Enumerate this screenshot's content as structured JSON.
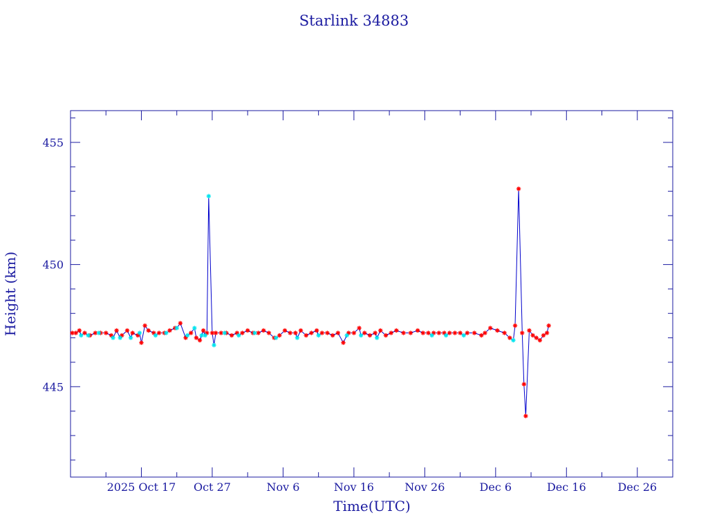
{
  "chart_data": {
    "type": "line",
    "title": "Starlink 34883",
    "xlabel": "Time(UTC)",
    "ylabel": "Height (km)",
    "xlim": [
      "2025-10-07",
      "2025-12-31"
    ],
    "ylim": [
      441.3,
      456.3
    ],
    "x_ticks": [
      {
        "date": "2025-10-17",
        "label": "2025 Oct 17"
      },
      {
        "date": "2025-10-27",
        "label": "Oct 27"
      },
      {
        "date": "2025-11-06",
        "label": "Nov  6"
      },
      {
        "date": "2025-11-16",
        "label": "Nov 16"
      },
      {
        "date": "2025-11-26",
        "label": "Nov 26"
      },
      {
        "date": "2025-12-06",
        "label": "Dec  6"
      },
      {
        "date": "2025-12-16",
        "label": "Dec 16"
      },
      {
        "date": "2025-12-26",
        "label": "Dec 26"
      }
    ],
    "y_ticks": [
      445,
      450,
      455
    ],
    "grid": false,
    "colors": {
      "axis": "#1a1aa0",
      "line": "#0000cc",
      "marker_a": "#ff0000",
      "marker_b": "#00e5ee"
    },
    "series": [
      {
        "marker": "red-asterisk",
        "points": [
          [
            "2025-10-07 06:00",
            447.2
          ],
          [
            "2025-10-07 18:00",
            447.2
          ],
          [
            "2025-10-08 06:00",
            447.3
          ],
          [
            "2025-10-09 00:00",
            447.2
          ],
          [
            "2025-10-09 18:00",
            447.1
          ],
          [
            "2025-10-10 12:00",
            447.2
          ],
          [
            "2025-10-11 06:00",
            447.2
          ],
          [
            "2025-10-12 00:00",
            447.2
          ],
          [
            "2025-10-12 18:00",
            447.1
          ],
          [
            "2025-10-13 12:00",
            447.3
          ],
          [
            "2025-10-14 06:00",
            447.1
          ],
          [
            "2025-10-15 00:00",
            447.3
          ],
          [
            "2025-10-15 18:00",
            447.2
          ],
          [
            "2025-10-16 12:00",
            447.1
          ],
          [
            "2025-10-17 00:00",
            446.8
          ],
          [
            "2025-10-17 12:00",
            447.5
          ],
          [
            "2025-10-18 00:00",
            447.3
          ],
          [
            "2025-10-18 18:00",
            447.2
          ],
          [
            "2025-10-19 12:00",
            447.2
          ],
          [
            "2025-10-20 06:00",
            447.2
          ],
          [
            "2025-10-21 00:00",
            447.3
          ],
          [
            "2025-10-21 18:00",
            447.4
          ],
          [
            "2025-10-22 12:00",
            447.6
          ],
          [
            "2025-10-23 06:00",
            447.0
          ],
          [
            "2025-10-24 00:00",
            447.2
          ],
          [
            "2025-10-24 18:00",
            447.0
          ],
          [
            "2025-10-25 06:00",
            446.9
          ],
          [
            "2025-10-25 18:00",
            447.3
          ],
          [
            "2025-10-26 06:00",
            447.2
          ],
          [
            "2025-10-27 00:00",
            447.2
          ],
          [
            "2025-10-27 12:00",
            447.2
          ],
          [
            "2025-10-28 06:00",
            447.2
          ],
          [
            "2025-10-29 00:00",
            447.2
          ],
          [
            "2025-10-29 18:00",
            447.1
          ],
          [
            "2025-10-30 12:00",
            447.2
          ],
          [
            "2025-10-31 06:00",
            447.2
          ],
          [
            "2025-11-01 00:00",
            447.3
          ],
          [
            "2025-11-01 18:00",
            447.2
          ],
          [
            "2025-11-02 12:00",
            447.2
          ],
          [
            "2025-11-03 06:00",
            447.3
          ],
          [
            "2025-11-04 00:00",
            447.2
          ],
          [
            "2025-11-04 18:00",
            447.0
          ],
          [
            "2025-11-05 12:00",
            447.1
          ],
          [
            "2025-11-06 06:00",
            447.3
          ],
          [
            "2025-11-07 00:00",
            447.2
          ],
          [
            "2025-11-07 18:00",
            447.2
          ],
          [
            "2025-11-08 12:00",
            447.3
          ],
          [
            "2025-11-09 06:00",
            447.1
          ],
          [
            "2025-11-10 00:00",
            447.2
          ],
          [
            "2025-11-10 18:00",
            447.3
          ],
          [
            "2025-11-11 12:00",
            447.2
          ],
          [
            "2025-11-12 06:00",
            447.2
          ],
          [
            "2025-11-13 00:00",
            447.1
          ],
          [
            "2025-11-13 18:00",
            447.2
          ],
          [
            "2025-11-14 12:00",
            446.8
          ],
          [
            "2025-11-15 06:00",
            447.2
          ],
          [
            "2025-11-16 00:00",
            447.2
          ],
          [
            "2025-11-16 18:00",
            447.4
          ],
          [
            "2025-11-17 12:00",
            447.2
          ],
          [
            "2025-11-18 06:00",
            447.1
          ],
          [
            "2025-11-19 00:00",
            447.2
          ],
          [
            "2025-11-19 18:00",
            447.3
          ],
          [
            "2025-11-20 12:00",
            447.1
          ],
          [
            "2025-11-21 06:00",
            447.2
          ],
          [
            "2025-11-22 00:00",
            447.3
          ],
          [
            "2025-11-23 00:00",
            447.2
          ],
          [
            "2025-11-24 00:00",
            447.2
          ],
          [
            "2025-11-25 00:00",
            447.3
          ],
          [
            "2025-11-25 18:00",
            447.2
          ],
          [
            "2025-11-26 12:00",
            447.2
          ],
          [
            "2025-11-27 06:00",
            447.2
          ],
          [
            "2025-11-28 00:00",
            447.2
          ],
          [
            "2025-11-28 18:00",
            447.2
          ],
          [
            "2025-11-29 12:00",
            447.2
          ],
          [
            "2025-11-30 06:00",
            447.2
          ],
          [
            "2025-12-01 00:00",
            447.2
          ],
          [
            "2025-12-02 00:00",
            447.2
          ],
          [
            "2025-12-03 00:00",
            447.2
          ],
          [
            "2025-12-04 00:00",
            447.1
          ],
          [
            "2025-12-04 12:00",
            447.2
          ],
          [
            "2025-12-05 06:00",
            447.4
          ],
          [
            "2025-12-06 06:00",
            447.3
          ],
          [
            "2025-12-07 06:00",
            447.2
          ],
          [
            "2025-12-08 00:00",
            447.0
          ],
          [
            "2025-12-08 18:00",
            447.5
          ],
          [
            "2025-12-09 06:00",
            453.1
          ],
          [
            "2025-12-09 18:00",
            447.2
          ],
          [
            "2025-12-10 00:00",
            445.1
          ],
          [
            "2025-12-10 06:00",
            443.8
          ],
          [
            "2025-12-10 18:00",
            447.3
          ],
          [
            "2025-12-11 06:00",
            447.1
          ],
          [
            "2025-12-11 18:00",
            447.0
          ],
          [
            "2025-12-12 06:00",
            446.9
          ],
          [
            "2025-12-12 18:00",
            447.1
          ],
          [
            "2025-12-13 06:00",
            447.2
          ],
          [
            "2025-12-13 12:00",
            447.5
          ]
        ]
      },
      {
        "marker": "cyan-asterisk",
        "points": [
          [
            "2025-10-08 12:00",
            447.1
          ],
          [
            "2025-10-09 12:00",
            447.1
          ],
          [
            "2025-10-11 00:00",
            447.2
          ],
          [
            "2025-10-13 00:00",
            447.0
          ],
          [
            "2025-10-14 00:00",
            447.0
          ],
          [
            "2025-10-15 12:00",
            447.0
          ],
          [
            "2025-10-16 18:00",
            447.2
          ],
          [
            "2025-10-19 00:00",
            447.1
          ],
          [
            "2025-10-20 12:00",
            447.2
          ],
          [
            "2025-10-22 00:00",
            447.4
          ],
          [
            "2025-10-23 12:00",
            447.1
          ],
          [
            "2025-10-24 12:00",
            447.4
          ],
          [
            "2025-10-25 12:00",
            447.1
          ],
          [
            "2025-10-26 00:00",
            447.1
          ],
          [
            "2025-10-26 12:00",
            452.8
          ],
          [
            "2025-10-27 06:00",
            446.7
          ],
          [
            "2025-10-28 18:00",
            447.2
          ],
          [
            "2025-10-30 18:00",
            447.1
          ],
          [
            "2025-11-02 00:00",
            447.2
          ],
          [
            "2025-11-05 00:00",
            447.0
          ],
          [
            "2025-11-08 00:00",
            447.0
          ],
          [
            "2025-11-11 00:00",
            447.1
          ],
          [
            "2025-11-15 00:00",
            447.1
          ],
          [
            "2025-11-17 00:00",
            447.1
          ],
          [
            "2025-11-19 06:00",
            447.0
          ],
          [
            "2025-11-27 00:00",
            447.1
          ],
          [
            "2025-11-29 00:00",
            447.1
          ],
          [
            "2025-12-01 12:00",
            447.1
          ],
          [
            "2025-12-08 12:00",
            446.9
          ]
        ]
      }
    ]
  }
}
